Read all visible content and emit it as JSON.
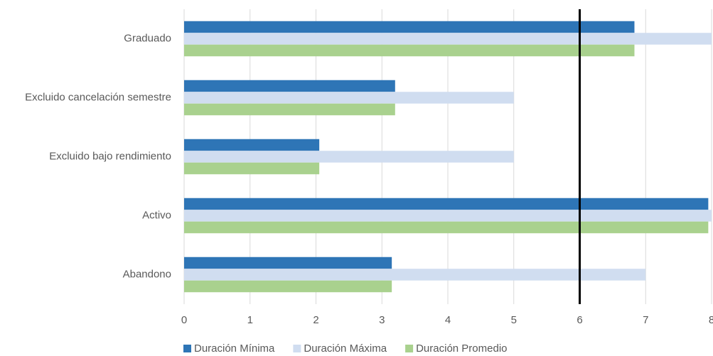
{
  "chart_data": {
    "type": "hbar",
    "categories": [
      "Graduado",
      "Excluido cancelación semestre",
      "Excluido bajo rendimiento",
      "Activo",
      "Abandono"
    ],
    "series": [
      {
        "name": "Duración Mínima",
        "color": "#2e75b6",
        "values": [
          6.83,
          3.2,
          2.05,
          7.95,
          3.15
        ]
      },
      {
        "name": "Duración Máxima",
        "color": "#d0ddf0",
        "values": [
          8,
          5,
          5,
          8,
          7
        ]
      },
      {
        "name": "Duración Promedio",
        "color": "#a9d18e",
        "values": [
          6.83,
          3.2,
          2.05,
          7.95,
          3.15
        ]
      }
    ],
    "xlim": [
      0,
      8
    ],
    "xticks": [
      0,
      1,
      2,
      3,
      4,
      5,
      6,
      7,
      8
    ],
    "grid": true,
    "reference_line": 6,
    "legend": "bottom"
  }
}
